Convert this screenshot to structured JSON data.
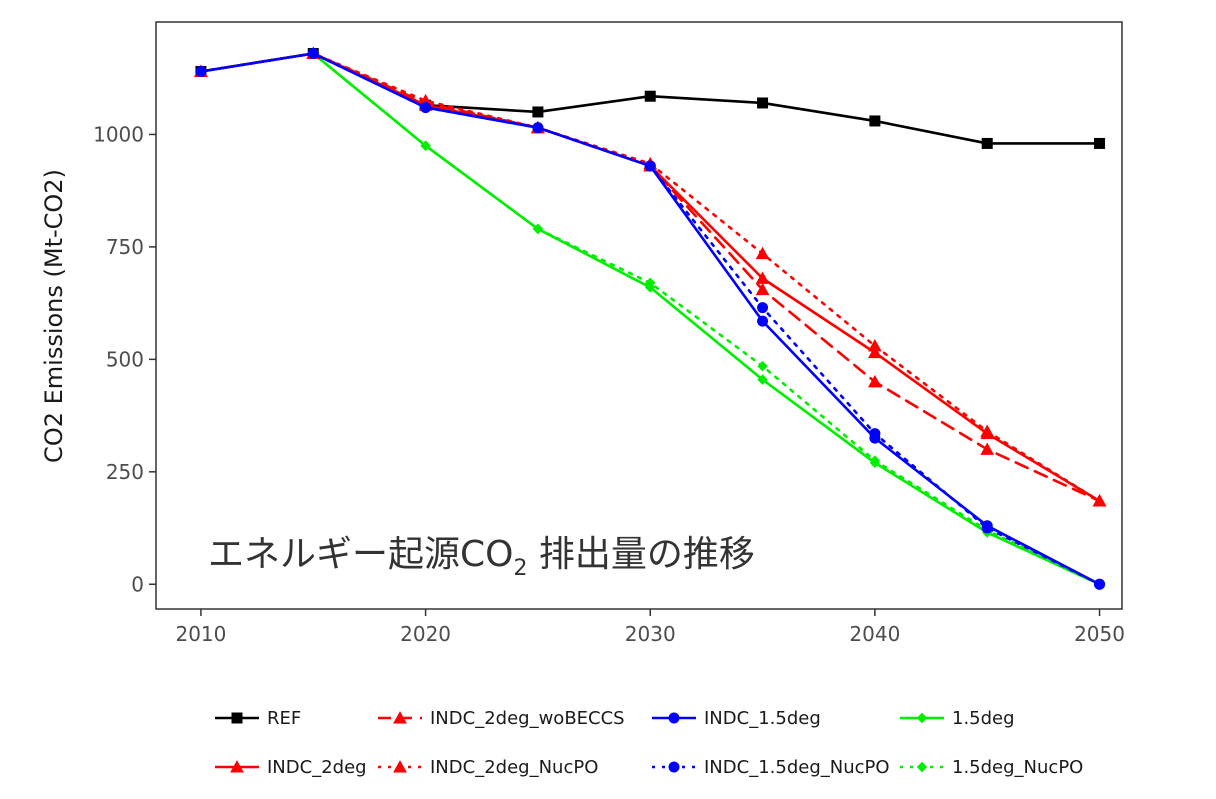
{
  "chart_data": {
    "type": "line",
    "title": "",
    "xlabel": "",
    "ylabel": "CO2 Emissions (Mt-CO2)",
    "xlim": [
      2008,
      2051
    ],
    "ylim": [
      -55,
      1250
    ],
    "x_ticks": [
      2010,
      2020,
      2030,
      2040,
      2050
    ],
    "y_ticks": [
      0,
      250,
      500,
      750,
      1000
    ],
    "grid": false,
    "legend_position": "bottom",
    "annotation": {
      "text": "エネルギー起源CO",
      "subscript": "2",
      "text_after": " 排出量の推移"
    },
    "series": [
      {
        "name": "REF",
        "color": "#000000",
        "marker": "square",
        "dash": "solid",
        "points": [
          [
            2010,
            1140
          ],
          [
            2015,
            1180
          ],
          [
            2020,
            1065
          ],
          [
            2025,
            1050
          ],
          [
            2030,
            1085
          ],
          [
            2035,
            1070
          ],
          [
            2040,
            1030
          ],
          [
            2045,
            980
          ],
          [
            2050,
            980
          ]
        ]
      },
      {
        "name": "INDC_2deg",
        "color": "#ff0000",
        "marker": "triangle",
        "dash": "solid",
        "points": [
          [
            2010,
            1140
          ],
          [
            2015,
            1180
          ],
          [
            2020,
            1065
          ],
          [
            2025,
            1015
          ],
          [
            2030,
            930
          ],
          [
            2035,
            680
          ],
          [
            2040,
            515
          ],
          [
            2045,
            335
          ],
          [
            2050,
            185
          ]
        ]
      },
      {
        "name": "INDC_2deg_woBECCS",
        "color": "#ff0000",
        "marker": "triangle",
        "dash": "dashed",
        "points": [
          [
            2010,
            1140
          ],
          [
            2015,
            1180
          ],
          [
            2020,
            1070
          ],
          [
            2025,
            1015
          ],
          [
            2030,
            930
          ],
          [
            2035,
            655
          ],
          [
            2040,
            450
          ],
          [
            2045,
            300
          ],
          [
            2050,
            185
          ]
        ]
      },
      {
        "name": "INDC_2deg_NucPO",
        "color": "#ff0000",
        "marker": "triangle",
        "dash": "dotted",
        "points": [
          [
            2010,
            1140
          ],
          [
            2015,
            1180
          ],
          [
            2020,
            1075
          ],
          [
            2025,
            1015
          ],
          [
            2030,
            935
          ],
          [
            2035,
            735
          ],
          [
            2040,
            530
          ],
          [
            2045,
            340
          ],
          [
            2050,
            185
          ]
        ]
      },
      {
        "name": "INDC_1.5deg",
        "color": "#0000ff",
        "marker": "circle",
        "dash": "solid",
        "points": [
          [
            2010,
            1140
          ],
          [
            2015,
            1180
          ],
          [
            2020,
            1060
          ],
          [
            2025,
            1015
          ],
          [
            2030,
            930
          ],
          [
            2035,
            585
          ],
          [
            2040,
            325
          ],
          [
            2045,
            130
          ],
          [
            2050,
            0
          ]
        ]
      },
      {
        "name": "INDC_1.5deg_NucPO",
        "color": "#0000ff",
        "marker": "circle",
        "dash": "dotted",
        "points": [
          [
            2010,
            1140
          ],
          [
            2015,
            1180
          ],
          [
            2020,
            1060
          ],
          [
            2025,
            1015
          ],
          [
            2030,
            930
          ],
          [
            2035,
            615
          ],
          [
            2040,
            335
          ],
          [
            2045,
            125
          ],
          [
            2050,
            0
          ]
        ]
      },
      {
        "name": "1.5deg",
        "color": "#00ee00",
        "marker": "diamond",
        "dash": "solid",
        "points": [
          [
            2010,
            1140
          ],
          [
            2015,
            1180
          ],
          [
            2020,
            975
          ],
          [
            2025,
            790
          ],
          [
            2030,
            660
          ],
          [
            2035,
            455
          ],
          [
            2040,
            270
          ],
          [
            2045,
            115
          ],
          [
            2050,
            0
          ]
        ]
      },
      {
        "name": "1.5deg_NucPO",
        "color": "#00ee00",
        "marker": "diamond",
        "dash": "dotted",
        "points": [
          [
            2010,
            1140
          ],
          [
            2015,
            1180
          ],
          [
            2020,
            975
          ],
          [
            2025,
            790
          ],
          [
            2030,
            670
          ],
          [
            2035,
            485
          ],
          [
            2040,
            275
          ],
          [
            2045,
            120
          ],
          [
            2050,
            0
          ]
        ]
      }
    ],
    "legend_order": [
      "REF",
      "INDC_2deg_woBECCS",
      "INDC_1.5deg",
      "1.5deg",
      "INDC_2deg",
      "INDC_2deg_NucPO",
      "INDC_1.5deg_NucPO",
      "1.5deg_NucPO"
    ]
  }
}
